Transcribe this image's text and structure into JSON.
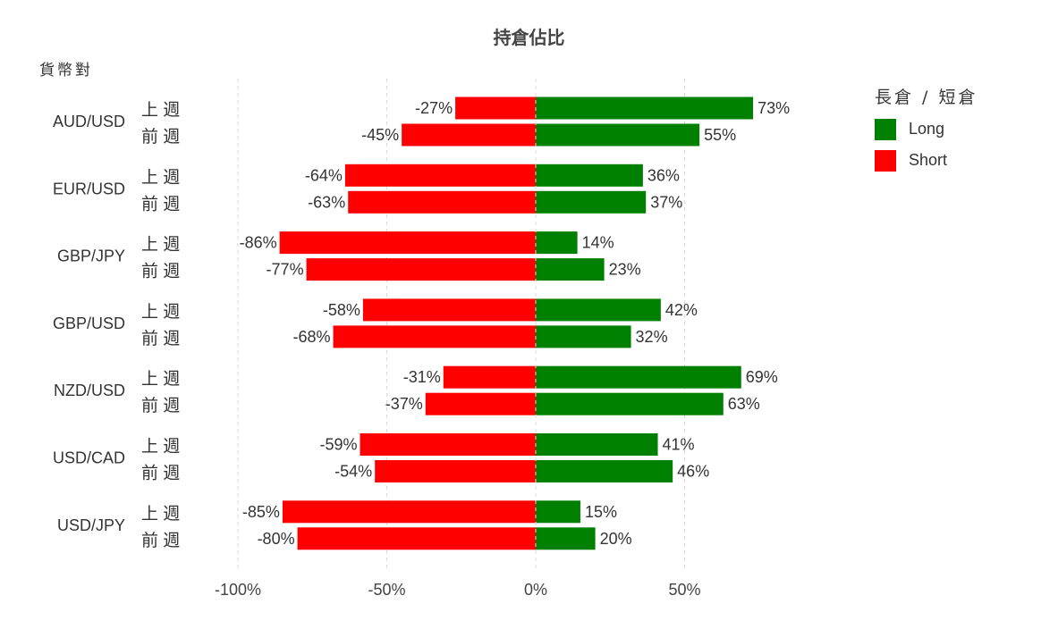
{
  "chart_data": {
    "type": "bar",
    "orientation": "horizontal",
    "title": "持倉佔比",
    "ylabel": "貨幣對",
    "xlim": [
      -100,
      50
    ],
    "x_ticks": [
      -100,
      -50,
      0,
      50
    ],
    "x_tick_labels": [
      "-100%",
      "-50%",
      "0%",
      "50%"
    ],
    "grid": "vertical dashed",
    "legend": {
      "title": "長倉 / 短倉",
      "position": "top-right",
      "entries": [
        {
          "name": "Long",
          "color": "#008000"
        },
        {
          "name": "Short",
          "color": "#ff0000"
        }
      ]
    },
    "groups": [
      {
        "pair": "AUD/USD",
        "rows": [
          {
            "period": "上 週",
            "long": 73,
            "short": -27,
            "long_label": "73%",
            "short_label": "-27%"
          },
          {
            "period": "前 週",
            "long": 55,
            "short": -45,
            "long_label": "55%",
            "short_label": "-45%"
          }
        ]
      },
      {
        "pair": "EUR/USD",
        "rows": [
          {
            "period": "上 週",
            "long": 36,
            "short": -64,
            "long_label": "36%",
            "short_label": "-64%"
          },
          {
            "period": "前 週",
            "long": 37,
            "short": -63,
            "long_label": "37%",
            "short_label": "-63%"
          }
        ]
      },
      {
        "pair": "GBP/JPY",
        "rows": [
          {
            "period": "上 週",
            "long": 14,
            "short": -86,
            "long_label": "14%",
            "short_label": "-86%"
          },
          {
            "period": "前 週",
            "long": 23,
            "short": -77,
            "long_label": "23%",
            "short_label": "-77%"
          }
        ]
      },
      {
        "pair": "GBP/USD",
        "rows": [
          {
            "period": "上 週",
            "long": 42,
            "short": -58,
            "long_label": "42%",
            "short_label": "-58%"
          },
          {
            "period": "前 週",
            "long": 32,
            "short": -68,
            "long_label": "32%",
            "short_label": "-68%"
          }
        ]
      },
      {
        "pair": "NZD/USD",
        "rows": [
          {
            "period": "上 週",
            "long": 69,
            "short": -31,
            "long_label": "69%",
            "short_label": "-31%"
          },
          {
            "period": "前 週",
            "long": 63,
            "short": -37,
            "long_label": "63%",
            "short_label": "-37%"
          }
        ]
      },
      {
        "pair": "USD/CAD",
        "rows": [
          {
            "period": "上 週",
            "long": 41,
            "short": -59,
            "long_label": "41%",
            "short_label": "-59%"
          },
          {
            "period": "前 週",
            "long": 46,
            "short": -54,
            "long_label": "46%",
            "short_label": "-54%"
          }
        ]
      },
      {
        "pair": "USD/JPY",
        "rows": [
          {
            "period": "上 週",
            "long": 15,
            "short": -85,
            "long_label": "15%",
            "short_label": "-85%"
          },
          {
            "period": "前 週",
            "long": 20,
            "short": -80,
            "long_label": "20%",
            "short_label": "-80%"
          }
        ]
      }
    ]
  }
}
